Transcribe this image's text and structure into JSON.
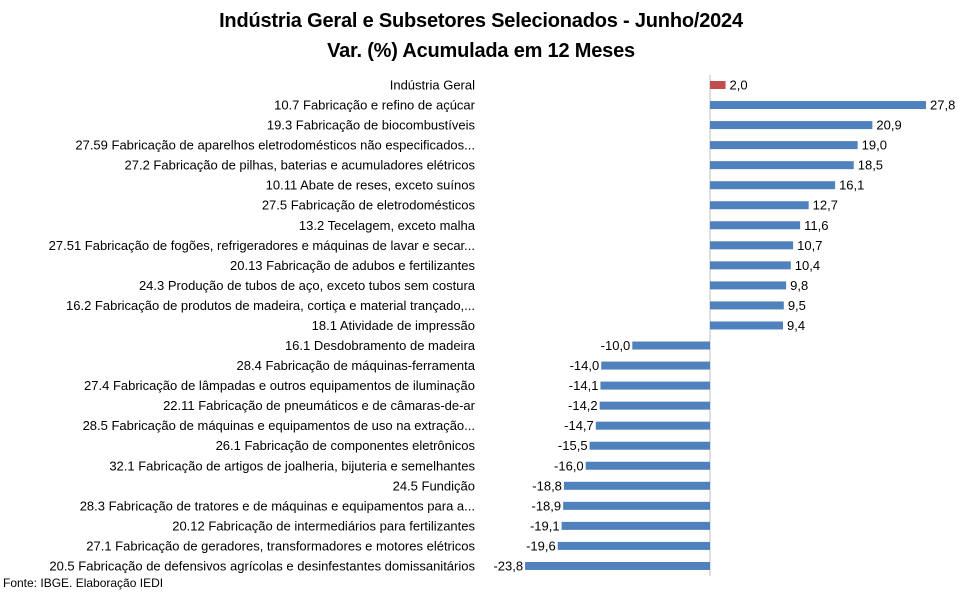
{
  "chart_data": {
    "type": "bar",
    "orientation": "horizontal",
    "title": "Indústria Geral e Subsetores Selecionados - Junho/2024",
    "subtitle": "Var. (%) Acumulada em 12 Meses",
    "source": "Fonte: IBGE. Elaboração IEDI",
    "xlim": [
      -25,
      30
    ],
    "grid": false,
    "colors": {
      "highlight": "#c0504d",
      "default": "#4f81bd"
    },
    "categories": [
      "Indústria Geral",
      "10.7 Fabricação e refino de açúcar",
      "19.3 Fabricação de biocombustíveis",
      "27.59 Fabricação de aparelhos eletrodomésticos não especificados...",
      "27.2 Fabricação de pilhas, baterias e acumuladores elétricos",
      "10.11 Abate de reses, exceto suínos",
      "27.5 Fabricação de eletrodomésticos",
      "13.2 Tecelagem, exceto malha",
      "27.51 Fabricação de fogões, refrigeradores e máquinas de lavar e secar...",
      "20.13 Fabricação de adubos e fertilizantes",
      "24.3 Produção de tubos de aço, exceto tubos sem costura",
      "16.2 Fabricação de produtos de madeira, cortiça e material trançado,...",
      "18.1 Atividade de impressão",
      "16.1 Desdobramento de madeira",
      "28.4 Fabricação de máquinas-ferramenta",
      "27.4 Fabricação de lâmpadas e outros equipamentos de iluminação",
      "22.11 Fabricação de pneumáticos e de câmaras-de-ar",
      "28.5 Fabricação de máquinas e equipamentos de uso na extração...",
      "26.1 Fabricação de componentes eletrônicos",
      "32.1 Fabricação de artigos de joalheria, bijuteria e semelhantes",
      "24.5 Fundição",
      "28.3 Fabricação de tratores e de máquinas e equipamentos para a...",
      "20.12 Fabricação de intermediários para fertilizantes",
      "27.1 Fabricação de geradores, transformadores e motores elétricos",
      "20.5 Fabricação de defensivos agrícolas e desinfestantes domissanitários"
    ],
    "values": [
      2.0,
      27.8,
      20.9,
      19.0,
      18.5,
      16.1,
      12.7,
      11.6,
      10.7,
      10.4,
      9.8,
      9.5,
      9.4,
      -10.0,
      -14.0,
      -14.1,
      -14.2,
      -14.7,
      -15.5,
      -16.0,
      -18.8,
      -18.9,
      -19.1,
      -19.6,
      -23.8
    ],
    "data_labels": [
      "2,0",
      "27,8",
      "20,9",
      "19,0",
      "18,5",
      "16,1",
      "12,7",
      "11,6",
      "10,7",
      "10,4",
      "9,8",
      "9,5",
      "9,4",
      "-10,0",
      "-14,0",
      "-14,1",
      "-14,2",
      "-14,7",
      "-15,5",
      "-16,0",
      "-18,8",
      "-18,9",
      "-19,1",
      "-19,6",
      "-23,8"
    ],
    "highlight_index": 0
  }
}
